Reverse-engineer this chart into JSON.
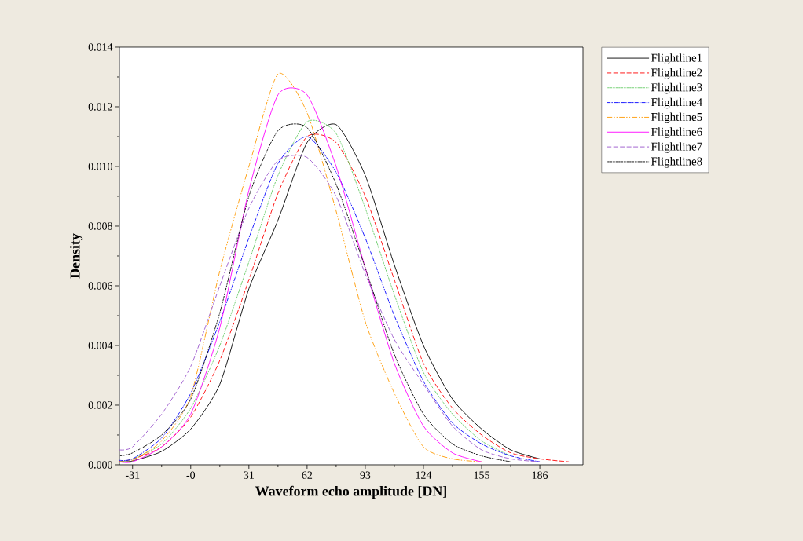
{
  "chart_data": {
    "type": "line",
    "xlabel": "Waveform echo amplitude [DN]",
    "ylabel": "Density",
    "x": [
      -38,
      -31,
      -15.5,
      0,
      15.5,
      31,
      46.5,
      62,
      77.5,
      93,
      108.5,
      124,
      139.5,
      155,
      170.5,
      186,
      201.5
    ],
    "xlim": [
      -38,
      209
    ],
    "ylim": [
      0,
      0.014
    ],
    "xticks": [
      -31,
      {
        "value": 0,
        "label": "-0"
      },
      31,
      62,
      93,
      124,
      155,
      186
    ],
    "yticks": [
      {
        "value": 0,
        "label": "0.000"
      },
      {
        "value": 0.002,
        "label": "0.002"
      },
      {
        "value": 0.004,
        "label": "0.004"
      },
      {
        "value": 0.006,
        "label": "0.006"
      },
      {
        "value": 0.008,
        "label": "0.008"
      },
      {
        "value": 0.01,
        "label": "0.010"
      },
      {
        "value": 0.012,
        "label": "0.012"
      },
      {
        "value": 0.014,
        "label": "0.014"
      }
    ],
    "legend": "right",
    "series": [
      {
        "name": "Flightline1",
        "color": "#000000",
        "line_style": "solid",
        "values": [
          0.0001,
          0.00013,
          0.00045,
          0.0012,
          0.0027,
          0.0059,
          0.0082,
          0.0108,
          0.0114,
          0.0097,
          0.0067,
          0.004,
          0.0022,
          0.0012,
          0.0005,
          0.0002,
          null
        ]
      },
      {
        "name": "Flightline2",
        "color": "#ff0000",
        "line_style": "longdashed",
        "values": [
          0.0001,
          0.00019,
          0.0006,
          0.0016,
          0.0035,
          0.0062,
          0.0091,
          0.011,
          0.0108,
          0.009,
          0.0062,
          0.0034,
          0.0019,
          0.001,
          0.0004,
          0.0002,
          0.0001
        ]
      },
      {
        "name": "Flightline3",
        "color": "#66cc66",
        "line_style": "dashed",
        "values": [
          0.0001,
          0.0002,
          0.0007,
          0.0019,
          0.004,
          0.0068,
          0.0097,
          0.0115,
          0.0111,
          0.0086,
          0.0057,
          0.0031,
          0.0017,
          0.0008,
          0.0003,
          null,
          null
        ]
      },
      {
        "name": "Flightline4",
        "color": "#0000ff",
        "line_style": "dashdot",
        "values": [
          0.00015,
          0.0002,
          0.0009,
          0.0024,
          0.0048,
          0.0076,
          0.0101,
          0.011,
          0.0098,
          0.0076,
          0.005,
          0.0028,
          0.0014,
          0.0007,
          0.0003,
          0.0001,
          null
        ]
      },
      {
        "name": "Flightline5",
        "color": "#ff9900",
        "line_style": "dashdotdot",
        "values": [
          0.0001,
          0.00015,
          0.0008,
          0.0023,
          0.0065,
          0.01,
          0.0131,
          0.0118,
          0.0085,
          0.0048,
          0.0024,
          0.0006,
          0.0002,
          0.0001,
          null,
          null,
          null
        ]
      },
      {
        "name": "Flightline6",
        "color": "#ff00ff",
        "line_style": "solid",
        "values": [
          0.0001,
          0.0001,
          0.0006,
          0.0017,
          0.0046,
          0.0092,
          0.0124,
          0.0124,
          0.01,
          0.0066,
          0.0034,
          0.0013,
          0.0004,
          0.0001,
          null,
          null,
          null
        ]
      },
      {
        "name": "Flightline7",
        "color": "#9955cc",
        "line_style": "longdashed",
        "values": [
          0.0005,
          0.0006,
          0.0017,
          0.0033,
          0.006,
          0.0086,
          0.0102,
          0.0103,
          0.009,
          0.0064,
          0.0042,
          0.0027,
          0.0013,
          0.0005,
          0.0002,
          0.0001,
          null
        ]
      },
      {
        "name": "Flightline8",
        "color": "#000000",
        "line_style": "dashed",
        "values": [
          0.0003,
          0.0004,
          0.001,
          0.0022,
          0.0051,
          0.009,
          0.0112,
          0.0113,
          0.0094,
          0.0066,
          0.0037,
          0.0017,
          0.0007,
          0.0003,
          0.0001,
          null,
          null
        ]
      }
    ]
  }
}
